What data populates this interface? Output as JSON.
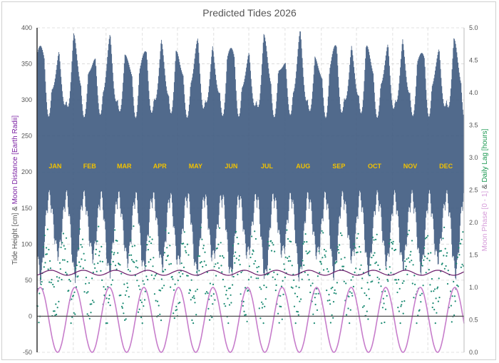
{
  "chart_data": {
    "type": "line",
    "title": "Predicted Tides 2026",
    "left_axis": {
      "ylim": [
        -50,
        400
      ],
      "ticks": [
        -50,
        0,
        50,
        100,
        150,
        200,
        250,
        300,
        350,
        400
      ],
      "label_parts": [
        {
          "text": "Tide Height [cm]",
          "color": "#555555"
        },
        {
          "text": "&",
          "color": "#555555"
        },
        {
          "text": "Moon Distance [Earth Radii]",
          "color": "#7a1fa2"
        }
      ]
    },
    "right_axis": {
      "ylim": [
        0.0,
        5.0
      ],
      "ticks": [
        "0.0",
        "0.5",
        "1.0",
        "1.5",
        "2.0",
        "2.5",
        "3.0",
        "3.5",
        "4.0",
        "4.5",
        "5.0"
      ],
      "label_parts": [
        {
          "text": "Moon Phase [0 - 1]",
          "color": "#d59ad8"
        },
        {
          "text": "&",
          "color": "#555555"
        },
        {
          "text": "Daily Lag [hours]",
          "color": "#1a9850"
        }
      ]
    },
    "x": {
      "days": 365
    },
    "months": [
      "JAN",
      "FEB",
      "MAR",
      "APR",
      "MAY",
      "JUN",
      "JUL",
      "AUG",
      "SEP",
      "OCT",
      "NOV",
      "DEC"
    ],
    "month_start_days": [
      0,
      31,
      59,
      90,
      120,
      151,
      181,
      212,
      243,
      273,
      304,
      334
    ],
    "series": [
      {
        "name": "Tide Height",
        "axis": "left",
        "color": "#3e5a80",
        "low_range": [
          40,
          150
        ],
        "high_range": [
          300,
          400
        ],
        "spring_neap_period_days": 14.77
      },
      {
        "name": "Moon Distance",
        "axis": "left",
        "color": "#6a1b6a",
        "mean": 60.3,
        "amplitude": 3.5,
        "period_days": 27.55
      },
      {
        "name": "Moon Phase",
        "axis": "right",
        "color": "#c77dcb",
        "min": 0.0,
        "max": 1.0,
        "period_days": 29.53,
        "first_new_moon_day": 17.5
      },
      {
        "name": "Daily Lag",
        "axis": "right",
        "color": "#1a8a72",
        "typical_range": [
          0.6,
          1.9
        ],
        "period_days": 14.77
      }
    ],
    "zero_line": 0,
    "grid": true
  }
}
